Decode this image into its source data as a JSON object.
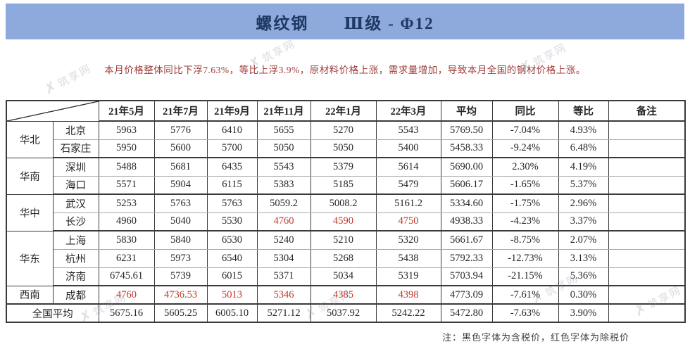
{
  "title": "螺纹钢　　Ⅲ级 - Φ12",
  "summary": "本月价格整体同比下浮7.63%，等比上浮3.9%，原材料价格上涨，需求量增加，导致本月全国的钢材价格上涨。",
  "foot_note": "注：黑色字体为含税价，红色字体为除税价",
  "watermark_text": "筑享网",
  "colors": {
    "header_bg": "#8ea9db",
    "title_text": "#1f3864",
    "black_price": "#262626",
    "red_price": "#c0392b",
    "summary_text": "#9e3b38"
  },
  "legend": {
    "black_means": "含税价",
    "red_means": "除税价"
  },
  "table": {
    "columns": [
      "21年5月",
      "21年7月",
      "21年9月",
      "21年11月",
      "22年1月",
      "22年3月",
      "平均",
      "同比",
      "等比",
      "备注"
    ],
    "groups": [
      {
        "region": "华北",
        "cities": [
          {
            "name": "北京",
            "values": [
              "5963",
              "5776",
              "6410",
              "5655",
              "5270",
              "5543"
            ],
            "red_indexes": [],
            "avg": "5769.50",
            "yoy": "-7.04%",
            "qoq": "4.93%",
            "remark": ""
          },
          {
            "name": "石家庄",
            "values": [
              "5950",
              "5600",
              "5700",
              "5050",
              "5050",
              "5400"
            ],
            "red_indexes": [],
            "avg": "5458.33",
            "yoy": "-9.24%",
            "qoq": "6.48%",
            "remark": ""
          }
        ]
      },
      {
        "region": "华南",
        "cities": [
          {
            "name": "深圳",
            "values": [
              "5488",
              "5681",
              "6435",
              "5543",
              "5379",
              "5614"
            ],
            "red_indexes": [],
            "avg": "5690.00",
            "yoy": "2.30%",
            "qoq": "4.19%",
            "remark": ""
          },
          {
            "name": "海口",
            "values": [
              "5571",
              "5904",
              "6115",
              "5383",
              "5185",
              "5479"
            ],
            "red_indexes": [],
            "avg": "5606.17",
            "yoy": "-1.65%",
            "qoq": "5.37%",
            "remark": ""
          }
        ]
      },
      {
        "region": "华中",
        "cities": [
          {
            "name": "武汉",
            "values": [
              "5253",
              "5763",
              "5763",
              "5059.2",
              "5008.2",
              "5161.2"
            ],
            "red_indexes": [],
            "avg": "5334.60",
            "yoy": "-1.75%",
            "qoq": "2.96%",
            "remark": ""
          },
          {
            "name": "长沙",
            "values": [
              "4960",
              "5040",
              "5530",
              "4760",
              "4590",
              "4750"
            ],
            "red_indexes": [
              3,
              4,
              5
            ],
            "avg": "4938.33",
            "yoy": "-4.23%",
            "qoq": "3.37%",
            "remark": ""
          }
        ]
      },
      {
        "region": "华东",
        "cities": [
          {
            "name": "上海",
            "values": [
              "5830",
              "5840",
              "6530",
              "5240",
              "5210",
              "5320"
            ],
            "red_indexes": [],
            "avg": "5661.67",
            "yoy": "-8.75%",
            "qoq": "2.07%",
            "remark": ""
          },
          {
            "name": "杭州",
            "values": [
              "6231",
              "5973",
              "6540",
              "5304",
              "5268",
              "5438"
            ],
            "red_indexes": [],
            "avg": "5792.33",
            "yoy": "-12.73%",
            "qoq": "3.13%",
            "remark": ""
          },
          {
            "name": "济南",
            "values": [
              "6745.61",
              "5739",
              "6015",
              "5371",
              "5034",
              "5319"
            ],
            "red_indexes": [],
            "avg": "5703.94",
            "yoy": "-21.15%",
            "qoq": "5.36%",
            "remark": ""
          }
        ]
      },
      {
        "region": "西南",
        "cities": [
          {
            "name": "成都",
            "values": [
              "4760",
              "4736.53",
              "5013",
              "5346",
              "4385",
              "4398"
            ],
            "red_indexes": [
              0,
              1,
              2,
              3,
              4,
              5
            ],
            "avg": "4773.09",
            "yoy": "-7.61%",
            "qoq": "0.30%",
            "remark": ""
          }
        ]
      }
    ],
    "total_row": {
      "label": "全国平均",
      "values": [
        "5675.16",
        "5605.25",
        "6005.10",
        "5271.12",
        "5037.92",
        "5242.22"
      ],
      "red_indexes": [],
      "avg": "5472.80",
      "yoy": "-7.63%",
      "qoq": "3.90%",
      "remark": ""
    }
  }
}
